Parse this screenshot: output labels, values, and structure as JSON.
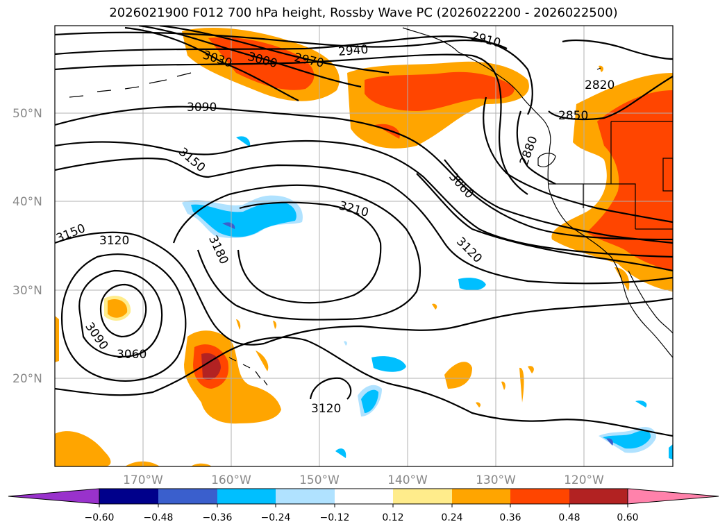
{
  "title": "2026021900 F012 700 hPa height, Rossby Wave PC (2026022200 - 2026022500)",
  "lat_labels": [
    "50°N",
    "40°N",
    "30°N",
    "20°N"
  ],
  "lon_labels": [
    "170°W",
    "160°W",
    "150°W",
    "140°W",
    "130°W",
    "120°W"
  ],
  "contour_labels": [
    "3030",
    "3000",
    "2970",
    "2940",
    "2910",
    "2820",
    "2850",
    "2880",
    "3090",
    "3150",
    "3060",
    "3210",
    "3120",
    "3180",
    "3150",
    "3120",
    "3090",
    "3060",
    "3120"
  ],
  "colorbar": {
    "ticks": [
      "−0.60",
      "−0.48",
      "−0.36",
      "−0.24",
      "−0.12",
      "0.12",
      "0.24",
      "0.36",
      "0.48",
      "0.60"
    ],
    "colors": [
      "#9932cc",
      "#00008b",
      "#3a5fcd",
      "#00bfff",
      "#b0e2ff",
      "#ffffff",
      "#ffec8b",
      "#ffa500",
      "#ff4500",
      "#b22222",
      "#ff82ab"
    ]
  }
}
